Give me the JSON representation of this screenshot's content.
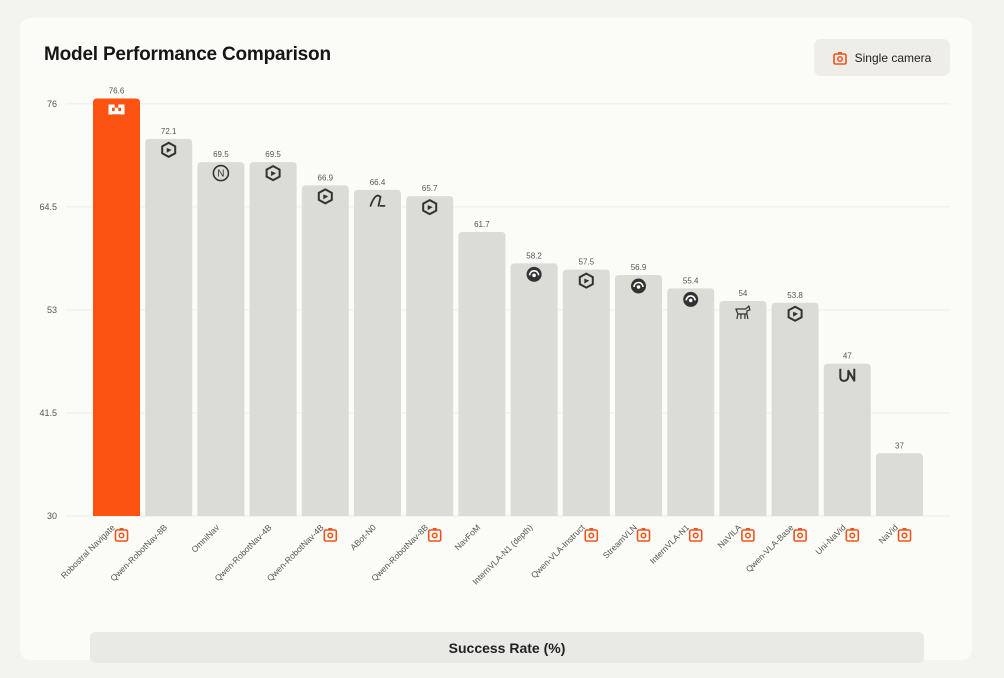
{
  "header": {
    "title": "Model Performance Comparison",
    "badge_label": "Single camera",
    "badge_icon": "camera-icon"
  },
  "footer": {
    "label": "Success Rate (%)"
  },
  "colors": {
    "highlight": "#fc5212",
    "bar": "#dcdcd6",
    "accent_icon": "#f0541c",
    "grid": "#ececea"
  },
  "chart_data": {
    "type": "bar",
    "title": "Model Performance Comparison",
    "xlabel": "Success Rate (%)",
    "ylabel": "",
    "ylim": [
      30,
      76.6
    ],
    "yticks": [
      "76",
      "64.5",
      "53",
      "41.5",
      "30"
    ],
    "grid": true,
    "categories": [
      "Robostral Navigate",
      "Qwen-RobotNav-8B",
      "OmniNav",
      "Qwen-RobotNav-4B",
      "Qwen-RobotNav-4B",
      "ABot-N0",
      "Qwen-RobotNav-8B",
      "NavFoM",
      "InternVLA-N1 (depth)",
      "Qwen-VLA-Instruct",
      "StreamVLN",
      "InternVLA-N1",
      "NaVILA",
      "Qwen-VLA-Base",
      "Uni-NaVid",
      "NaVid"
    ],
    "values": [
      76.6,
      72.1,
      69.5,
      69.5,
      66.9,
      66.4,
      65.7,
      61.7,
      58.2,
      57.5,
      56.9,
      55.4,
      54,
      53.8,
      47,
      37
    ],
    "value_labels": [
      "76.6",
      "72.1",
      "69.5",
      "69.5",
      "66.9",
      "66.4",
      "65.7",
      "61.7",
      "58.2",
      "57.5",
      "56.9",
      "55.4",
      "54",
      "53.8",
      "47",
      "37"
    ],
    "highlight_index": 0,
    "bar_icons": [
      "robostral-logo-icon",
      "qwen-logo-icon",
      "omninav-logo-icon",
      "qwen-logo-icon",
      "qwen-logo-icon",
      "abot-logo-icon",
      "qwen-logo-icon",
      "",
      "intern-logo-icon",
      "qwen-logo-icon",
      "intern-logo-icon",
      "intern-logo-icon",
      "navila-dog-icon",
      "qwen-logo-icon",
      "uninavid-logo-icon",
      ""
    ],
    "single_camera_marks": [
      true,
      false,
      false,
      false,
      true,
      false,
      true,
      false,
      false,
      true,
      true,
      true,
      true,
      true,
      true,
      true
    ]
  }
}
